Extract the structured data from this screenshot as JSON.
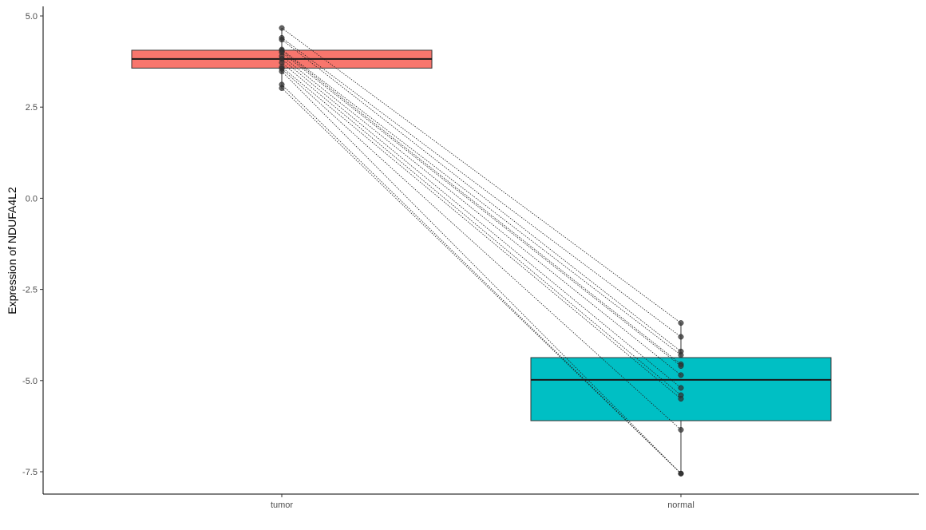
{
  "chart_data": {
    "type": "boxplot",
    "ylabel": "Expression of  NDUFA4L2",
    "xlabel": "",
    "title": "",
    "ylim": [
      -8.1,
      5.3
    ],
    "yticks": [
      5.0,
      2.5,
      0.0,
      -2.5,
      -5.0,
      -7.5
    ],
    "ytick_labels": [
      "5.0",
      "2.5",
      "0.0",
      "-2.5",
      "-5.0",
      "-7.5"
    ],
    "categories": [
      "tumor",
      "normal"
    ],
    "colors": {
      "tumor": "#F8766D",
      "normal": "#00BFC4"
    },
    "boxes": [
      {
        "group": "tumor",
        "q1": 3.57,
        "median": 3.82,
        "q3": 4.06,
        "whisker_low": 3.0,
        "whisker_high": 4.67
      },
      {
        "group": "normal",
        "q1": -6.1,
        "median": -4.98,
        "q3": -4.37,
        "whisker_low": -7.55,
        "whisker_high": -3.42
      }
    ],
    "pairs": [
      {
        "tumor": 4.67,
        "normal": -3.42
      },
      {
        "tumor": 4.4,
        "normal": -3.8
      },
      {
        "tumor": 4.35,
        "normal": -4.2
      },
      {
        "tumor": 4.08,
        "normal": -4.3
      },
      {
        "tumor": 4.05,
        "normal": -4.55
      },
      {
        "tumor": 4.0,
        "normal": -4.6
      },
      {
        "tumor": 3.9,
        "normal": -4.85
      },
      {
        "tumor": 3.82,
        "normal": -5.2
      },
      {
        "tumor": 3.72,
        "normal": -5.4
      },
      {
        "tumor": 3.6,
        "normal": -5.5
      },
      {
        "tumor": 3.55,
        "normal": -6.35
      },
      {
        "tumor": 3.48,
        "normal": -7.55
      },
      {
        "tumor": 3.12,
        "normal": -7.55
      },
      {
        "tumor": 3.02,
        "normal": -7.55
      }
    ],
    "grid": false,
    "legend": "none"
  }
}
